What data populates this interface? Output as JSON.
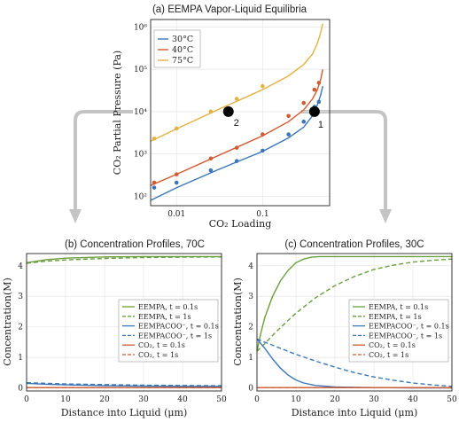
{
  "colors": {
    "c30": "#3b76b8",
    "c40": "#d15a31",
    "c75": "#e2b13f",
    "green": "#6a9e3d",
    "arrow": "#c4c4c4"
  },
  "chart_data": [
    {
      "type": "scatter",
      "title": "(a) EEMPA Vapor-Liquid Equilibria",
      "xlabel": "CO₂ Loading",
      "ylabel": "CO₂ Partial Pressure (Pa)",
      "xscale": "log",
      "yscale": "log",
      "xlim": [
        0.005,
        0.6
      ],
      "ylim": [
        60,
        1500000
      ],
      "xticks": [
        "0.01",
        "0.1"
      ],
      "yticks": [
        "10²",
        "10³",
        "10⁴",
        "10⁵",
        "10⁶"
      ],
      "legend_position": "top-left",
      "series": [
        {
          "name": "30°C",
          "color": "#3b76b8",
          "points": [
            [
              0.0055,
              160
            ],
            [
              0.01,
              210
            ],
            [
              0.025,
              410
            ],
            [
              0.05,
              680
            ],
            [
              0.1,
              1200
            ],
            [
              0.2,
              2900
            ],
            [
              0.3,
              5800
            ],
            [
              0.4,
              13000
            ],
            [
              0.45,
              17000
            ]
          ],
          "curve": [
            [
              0.005,
              80
            ],
            [
              0.01,
              160
            ],
            [
              0.03,
              420
            ],
            [
              0.1,
              1150
            ],
            [
              0.2,
              2400
            ],
            [
              0.3,
              4300
            ],
            [
              0.38,
              8000
            ],
            [
              0.43,
              14000
            ],
            [
              0.47,
              24000
            ],
            [
              0.5,
              40000
            ]
          ]
        },
        {
          "name": "40°C",
          "color": "#d15a31",
          "points": [
            [
              0.0055,
              210
            ],
            [
              0.01,
              330
            ],
            [
              0.025,
              780
            ],
            [
              0.05,
              1400
            ],
            [
              0.1,
              2900
            ],
            [
              0.2,
              7900
            ],
            [
              0.3,
              16000
            ],
            [
              0.4,
              33000
            ],
            [
              0.45,
              48000
            ]
          ],
          "curve": [
            [
              0.005,
              180
            ],
            [
              0.01,
              330
            ],
            [
              0.03,
              900
            ],
            [
              0.1,
              2700
            ],
            [
              0.2,
              5800
            ],
            [
              0.3,
              11000
            ],
            [
              0.38,
              20000
            ],
            [
              0.43,
              32000
            ],
            [
              0.47,
              55000
            ],
            [
              0.5,
              100000
            ]
          ]
        },
        {
          "name": "75°C",
          "color": "#e2b13f",
          "points": [
            [
              0.0055,
              2300
            ],
            [
              0.01,
              4000
            ],
            [
              0.025,
              10000
            ],
            [
              0.05,
              20000
            ],
            [
              0.1,
              40000
            ]
          ],
          "curve": [
            [
              0.005,
              2000
            ],
            [
              0.01,
              3900
            ],
            [
              0.03,
              11000
            ],
            [
              0.1,
              33000
            ],
            [
              0.2,
              70000
            ],
            [
              0.3,
              130000
            ],
            [
              0.38,
              230000
            ],
            [
              0.43,
              400000
            ],
            [
              0.47,
              700000
            ],
            [
              0.5,
              1200000
            ]
          ]
        }
      ],
      "annotations": [
        {
          "label": "2",
          "x": 0.04,
          "y": 10000
        },
        {
          "label": "1",
          "x": 0.4,
          "y": 10000
        }
      ]
    },
    {
      "type": "line",
      "title": "(b) Concentration Profiles, 70C",
      "xlabel": "Distance into Liquid (μm)",
      "ylabel": "Concentration(M)",
      "xlim": [
        0,
        50
      ],
      "ylim": [
        -0.1,
        4.4
      ],
      "xticks": [
        "0",
        "10",
        "20",
        "30",
        "40",
        "50"
      ],
      "yticks": [
        "0",
        "1",
        "2",
        "3",
        "4"
      ],
      "legend_position": "center-right",
      "series": [
        {
          "name": "EEMPA, t = 0.1s",
          "color": "#6a9e3d",
          "dash": false,
          "x": [
            0,
            5,
            10,
            20,
            30,
            40,
            50
          ],
          "y": [
            4.1,
            4.2,
            4.25,
            4.29,
            4.3,
            4.3,
            4.3
          ]
        },
        {
          "name": "EEMPA, t = 1s",
          "color": "#6a9e3d",
          "dash": true,
          "x": [
            0,
            5,
            10,
            20,
            30,
            40,
            50
          ],
          "y": [
            4.08,
            4.15,
            4.19,
            4.24,
            4.27,
            4.28,
            4.29
          ]
        },
        {
          "name": "EEMPACOO⁻, t = 0.1s",
          "color": "#3b76b8",
          "dash": false,
          "x": [
            0,
            5,
            10,
            20,
            30,
            40,
            50
          ],
          "y": [
            0.15,
            0.12,
            0.1,
            0.07,
            0.06,
            0.05,
            0.05
          ]
        },
        {
          "name": "EEMPACOO⁻, t = 1s",
          "color": "#3b76b8",
          "dash": true,
          "x": [
            0,
            5,
            10,
            20,
            30,
            40,
            50
          ],
          "y": [
            0.17,
            0.15,
            0.13,
            0.11,
            0.09,
            0.08,
            0.07
          ]
        },
        {
          "name": "CO₂, t = 0.1s",
          "color": "#d15a31",
          "dash": false,
          "x": [
            0,
            50
          ],
          "y": [
            0.01,
            0.01
          ]
        },
        {
          "name": "CO₂, t = 1s",
          "color": "#d15a31",
          "dash": true,
          "x": [
            0,
            50
          ],
          "y": [
            0.01,
            0.01
          ]
        }
      ]
    },
    {
      "type": "line",
      "title": "(c) Concentration Profiles, 30C",
      "xlabel": "Distance into Liquid (μm)",
      "ylabel": "Concentration(M)",
      "xlim": [
        0,
        50
      ],
      "ylim": [
        -0.1,
        4.4
      ],
      "xticks": [
        "0",
        "10",
        "20",
        "30",
        "40",
        "50"
      ],
      "yticks": [
        "0",
        "1",
        "2",
        "3",
        "4"
      ],
      "legend_position": "center-right",
      "series": [
        {
          "name": "EEMPA, t = 0.1s",
          "color": "#6a9e3d",
          "dash": false,
          "x": [
            0,
            1,
            2,
            4,
            6,
            8,
            10,
            12,
            14,
            16,
            20,
            30,
            40,
            50
          ],
          "y": [
            1.2,
            1.8,
            2.3,
            3.0,
            3.5,
            3.85,
            4.1,
            4.22,
            4.28,
            4.3,
            4.3,
            4.3,
            4.3,
            4.3
          ]
        },
        {
          "name": "EEMPA, t = 1s",
          "color": "#6a9e3d",
          "dash": true,
          "x": [
            0,
            2,
            5,
            10,
            15,
            20,
            25,
            30,
            35,
            40,
            45,
            50
          ],
          "y": [
            1.2,
            1.45,
            1.85,
            2.45,
            2.95,
            3.35,
            3.65,
            3.88,
            4.02,
            4.12,
            4.18,
            4.22
          ]
        },
        {
          "name": "EEMPACOO⁻, t = 0.1s",
          "color": "#3b76b8",
          "dash": false,
          "x": [
            0,
            2,
            4,
            6,
            8,
            10,
            12,
            15,
            20,
            30,
            40,
            50
          ],
          "y": [
            1.6,
            1.3,
            0.95,
            0.65,
            0.42,
            0.26,
            0.16,
            0.08,
            0.03,
            0.01,
            0.0,
            0.0
          ]
        },
        {
          "name": "EEMPACOO⁻, t = 1s",
          "color": "#3b76b8",
          "dash": true,
          "x": [
            0,
            5,
            10,
            15,
            20,
            25,
            30,
            35,
            40,
            45,
            50
          ],
          "y": [
            1.6,
            1.35,
            1.1,
            0.88,
            0.68,
            0.5,
            0.36,
            0.25,
            0.16,
            0.1,
            0.05
          ]
        },
        {
          "name": "CO₂, t = 0.1s",
          "color": "#d15a31",
          "dash": false,
          "x": [
            0,
            50
          ],
          "y": [
            0.01,
            0.01
          ]
        },
        {
          "name": "CO₂, t = 1s",
          "color": "#d15a31",
          "dash": true,
          "x": [
            0,
            50
          ],
          "y": [
            0.01,
            0.01
          ]
        }
      ]
    }
  ]
}
